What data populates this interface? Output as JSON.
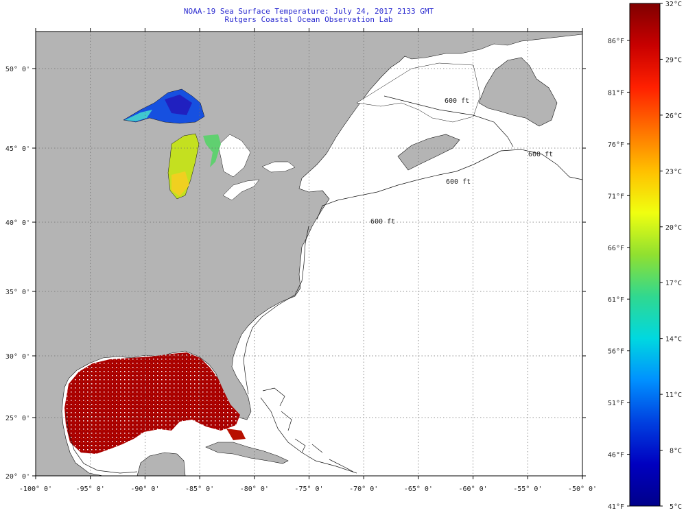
{
  "header": {
    "title": "NOAA-19 Sea Surface Temperature:  July 24, 2017 2133 GMT",
    "subtitle": "Rutgers Coastal Ocean Observation Lab"
  },
  "map": {
    "lon_labels": [
      "-100° 0'",
      "-95° 0'",
      "-90° 0'",
      "-85° 0'",
      "-80° 0'",
      "-75° 0'",
      "-70° 0'",
      "-65° 0'",
      "-60° 0'",
      "-55° 0'",
      "-50° 0'"
    ],
    "lat_labels": [
      "50° 0'",
      "45° 0'",
      "40° 0'",
      "35° 0'",
      "30° 0'",
      "25° 0'",
      "20° 0'"
    ],
    "contour_labels": [
      "600 ft",
      "600 ft",
      "600 ft",
      "600 ft"
    ],
    "colors": {
      "land": "#b4b4b4",
      "ocean": "#ffffff",
      "grid": "#6d6d6d"
    }
  },
  "colorbar": {
    "celsius_labels": [
      "32°C",
      "29°C",
      "26°C",
      "23°C",
      "20°C",
      "17°C",
      "14°C",
      "11°C",
      "8°C",
      "5°C"
    ],
    "fahrenheit_labels": [
      "86°F",
      "81°F",
      "76°F",
      "71°F",
      "66°F",
      "61°F",
      "56°F",
      "51°F",
      "46°F",
      "41°F"
    ],
    "range_celsius": [
      5,
      32
    ],
    "gradient_colors": [
      "#800000",
      "#c80000",
      "#ff2000",
      "#ff7000",
      "#ffc000",
      "#f0ff10",
      "#90e030",
      "#30d890",
      "#00d8e0",
      "#0090ff",
      "#0040e0",
      "#0000c0",
      "#00008a"
    ]
  }
}
